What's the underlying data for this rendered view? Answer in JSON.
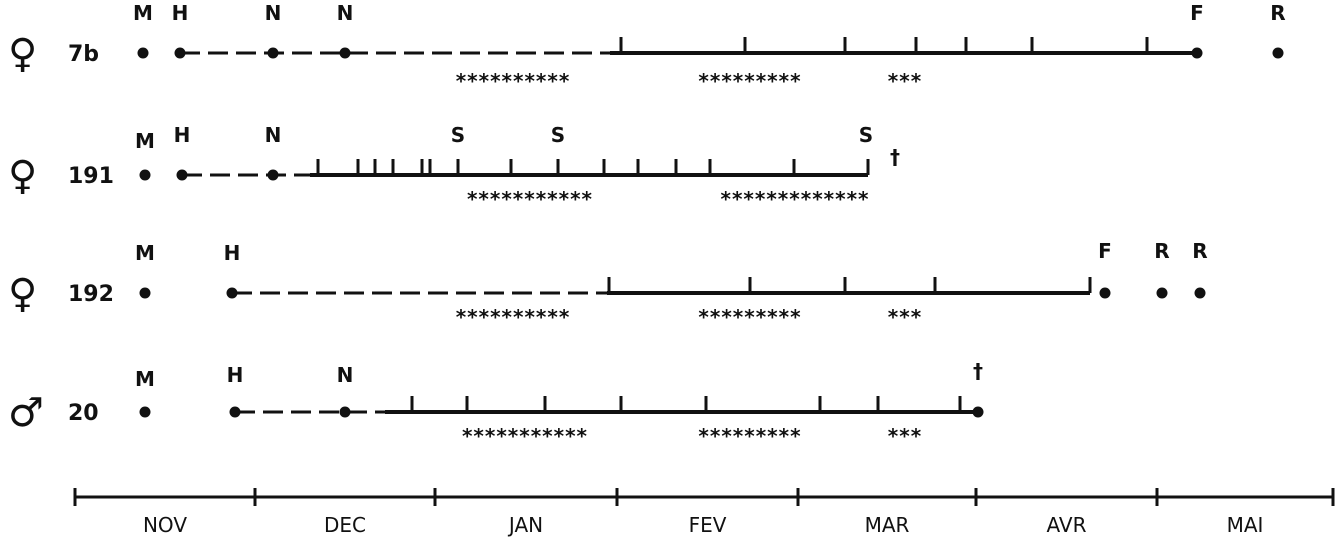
{
  "rows": [
    {
      "sex": "♀",
      "id": "7b",
      "events": [
        "M",
        "H",
        "N",
        "N",
        "F",
        "R"
      ],
      "stars": [
        "**********",
        "*********",
        "***"
      ]
    },
    {
      "sex": "♀",
      "id": "191",
      "events": [
        "M",
        "H",
        "N",
        "S",
        "S",
        "S",
        "†"
      ],
      "stars": [
        "***********",
        "*************"
      ]
    },
    {
      "sex": "♀",
      "id": "192",
      "events": [
        "M",
        "H",
        "F",
        "R",
        "R"
      ],
      "stars": [
        "**********",
        "*********",
        "***"
      ]
    },
    {
      "sex": "♂",
      "id": "20",
      "events": [
        "M",
        "H",
        "N",
        "†"
      ],
      "stars": [
        "***********",
        "*********",
        "***"
      ]
    }
  ],
  "months": [
    "NOV",
    "DEC",
    "JAN",
    "FEV",
    "MAR",
    "AVR",
    "MAI"
  ]
}
